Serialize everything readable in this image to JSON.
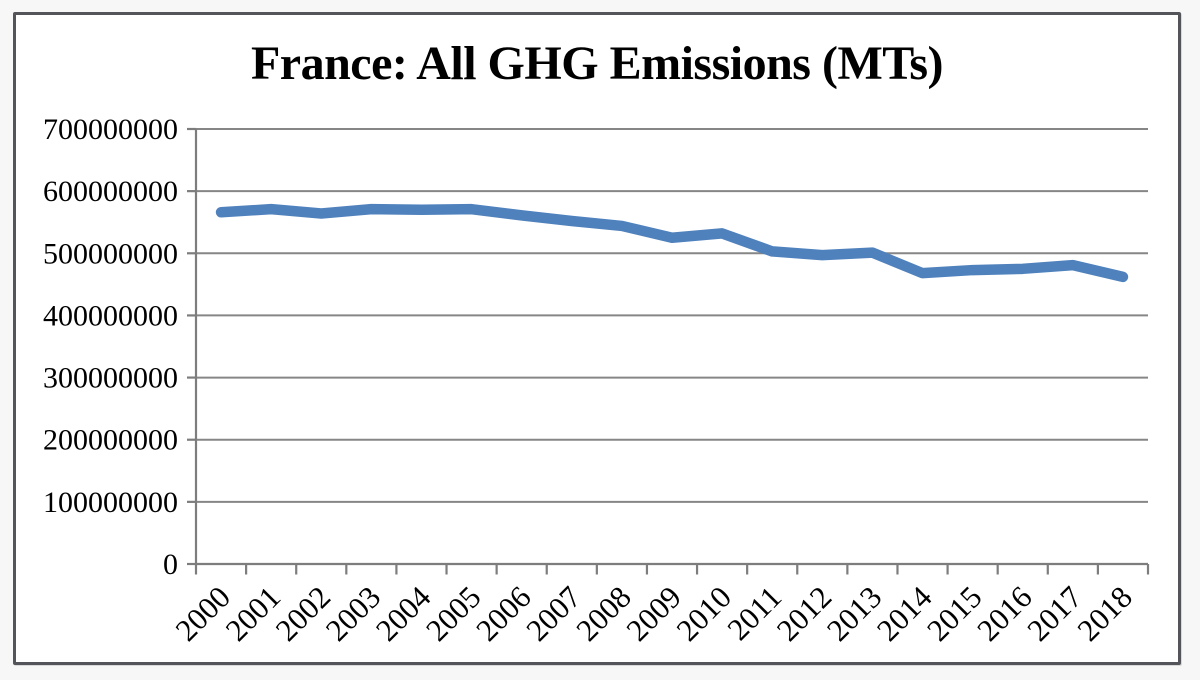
{
  "chart_data": {
    "type": "line",
    "title": "France: All GHG Emissions (MTs)",
    "categories": [
      "2000",
      "2001",
      "2002",
      "2003",
      "2004",
      "2005",
      "2006",
      "2007",
      "2008",
      "2009",
      "2010",
      "2011",
      "2012",
      "2013",
      "2014",
      "2015",
      "2016",
      "2017",
      "2018"
    ],
    "values": [
      566000000,
      571000000,
      564000000,
      571000000,
      570000000,
      571000000,
      561000000,
      552000000,
      544000000,
      525000000,
      532000000,
      503000000,
      497000000,
      501000000,
      468000000,
      473000000,
      475000000,
      481000000,
      462000000
    ],
    "xlabel": "",
    "ylabel": "",
    "ylim": [
      0,
      700000000
    ],
    "y_tick_labels": [
      "0",
      "100000000",
      "200000000",
      "300000000",
      "400000000",
      "500000000",
      "600000000",
      "700000000"
    ],
    "grid": true,
    "legend": false
  },
  "colors": {
    "series_line": "#4F81BD",
    "gridline": "#868686",
    "axis": "#7d7d7d",
    "frame_border": "#54555A",
    "text": "#000000",
    "plot_background": "#FFFFFF",
    "page_background": "#F7F7F8"
  }
}
